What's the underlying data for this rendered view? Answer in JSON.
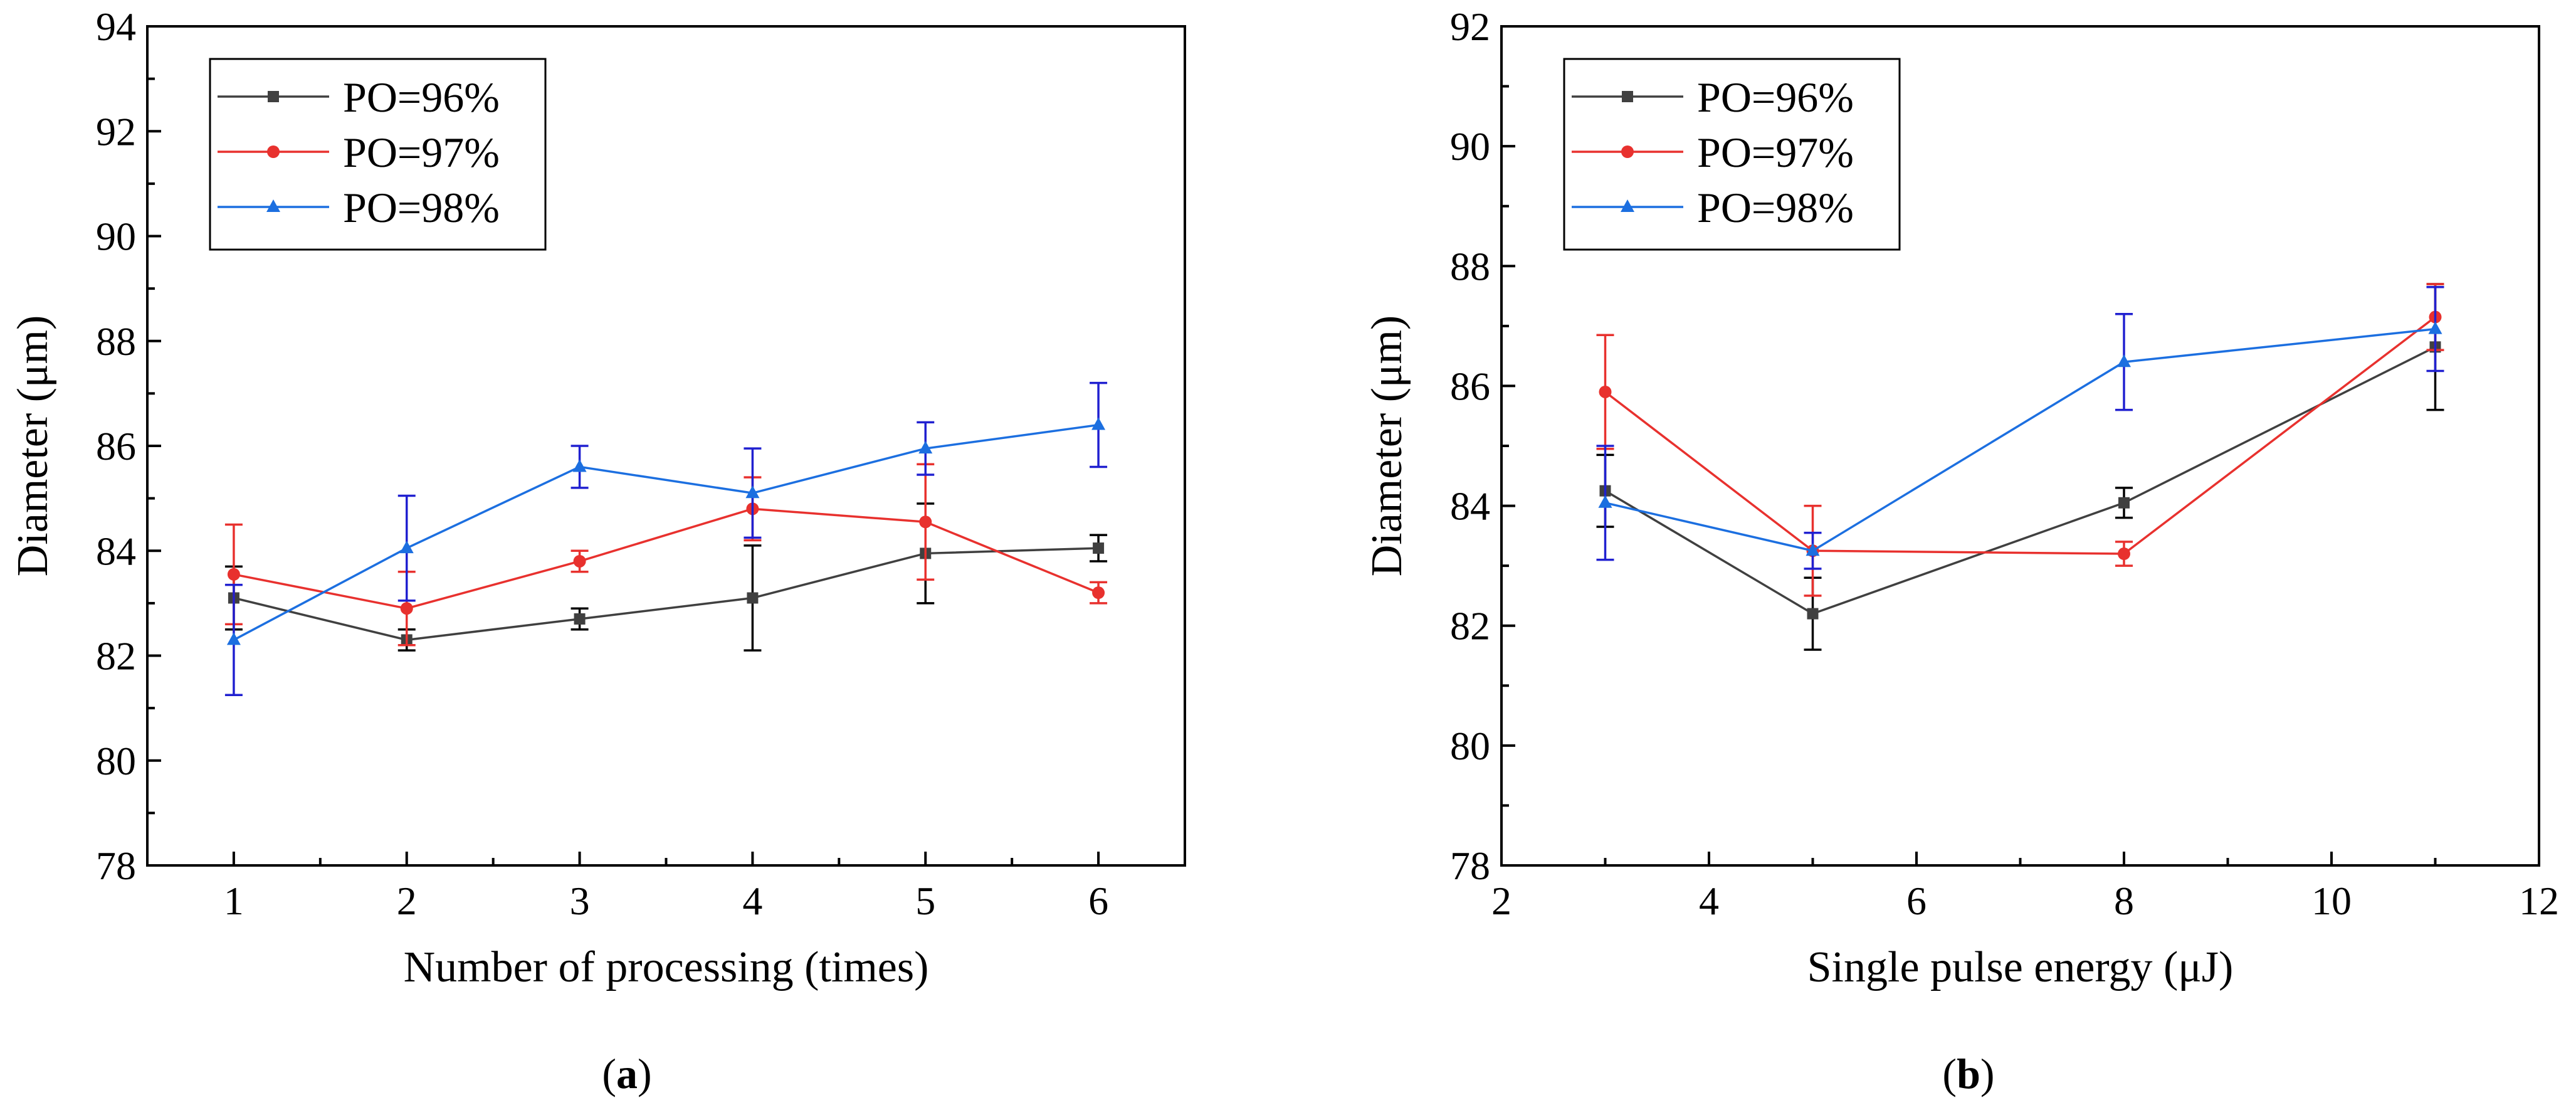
{
  "figure": {
    "panel_labels": [
      "a",
      "b"
    ]
  },
  "chart_data": [
    {
      "type": "line",
      "panel": "a",
      "xlabel": "Number of processing (times)",
      "ylabel": "Diameter (μm)",
      "xlim": [
        0.5,
        6.5
      ],
      "ylim": [
        78,
        94
      ],
      "xticks": [
        1,
        2,
        3,
        4,
        5,
        6
      ],
      "yticks": [
        78,
        80,
        82,
        84,
        86,
        88,
        90,
        92,
        94
      ],
      "legend_position": "top-left",
      "x": [
        1,
        2,
        3,
        4,
        5,
        6
      ],
      "series": [
        {
          "name": "PO=96%",
          "color": "#404040",
          "line_color": "#404040",
          "err_color": "#000000",
          "marker": "square",
          "values": [
            83.1,
            82.3,
            82.7,
            83.1,
            83.95,
            84.05
          ],
          "errors": [
            0.6,
            0.2,
            0.2,
            1.0,
            0.95,
            0.25
          ]
        },
        {
          "name": "PO=97%",
          "color": "#e8312e",
          "line_color": "#e8312e",
          "err_color": "#e8312e",
          "marker": "circle",
          "values": [
            83.55,
            82.9,
            83.8,
            84.8,
            84.55,
            83.2
          ],
          "errors": [
            0.95,
            0.7,
            0.2,
            0.6,
            1.1,
            0.2
          ]
        },
        {
          "name": "PO=98%",
          "color": "#1c6fe0",
          "line_color": "#1c6fe0",
          "err_color": "#2020d0",
          "marker": "triangle",
          "values": [
            82.3,
            84.05,
            85.6,
            85.1,
            85.95,
            86.4
          ],
          "errors": [
            1.05,
            1.0,
            0.4,
            0.85,
            0.5,
            0.8
          ]
        }
      ]
    },
    {
      "type": "line",
      "panel": "b",
      "xlabel": "Single pulse energy (μJ)",
      "ylabel": "Diameter (μm)",
      "xlim": [
        2,
        12
      ],
      "ylim": [
        78,
        92
      ],
      "xticks": [
        2,
        4,
        6,
        8,
        10,
        12
      ],
      "yticks": [
        78,
        80,
        82,
        84,
        86,
        88,
        90,
        92
      ],
      "legend_position": "top-left",
      "x": [
        3,
        5,
        8,
        11
      ],
      "series": [
        {
          "name": "PO=96%",
          "color": "#404040",
          "line_color": "#404040",
          "err_color": "#000000",
          "marker": "square",
          "values": [
            84.25,
            82.2,
            84.05,
            86.65
          ],
          "errors": [
            0.6,
            0.6,
            0.25,
            1.05
          ]
        },
        {
          "name": "PO=97%",
          "color": "#e8312e",
          "line_color": "#e8312e",
          "err_color": "#e8312e",
          "marker": "circle",
          "values": [
            85.9,
            83.25,
            83.2,
            87.15
          ],
          "errors": [
            0.95,
            0.75,
            0.2,
            0.55
          ]
        },
        {
          "name": "PO=98%",
          "color": "#1c6fe0",
          "line_color": "#1c6fe0",
          "err_color": "#2020d0",
          "marker": "triangle",
          "values": [
            84.05,
            83.25,
            86.4,
            86.95
          ],
          "errors": [
            0.95,
            0.3,
            0.8,
            0.7
          ]
        }
      ]
    }
  ]
}
